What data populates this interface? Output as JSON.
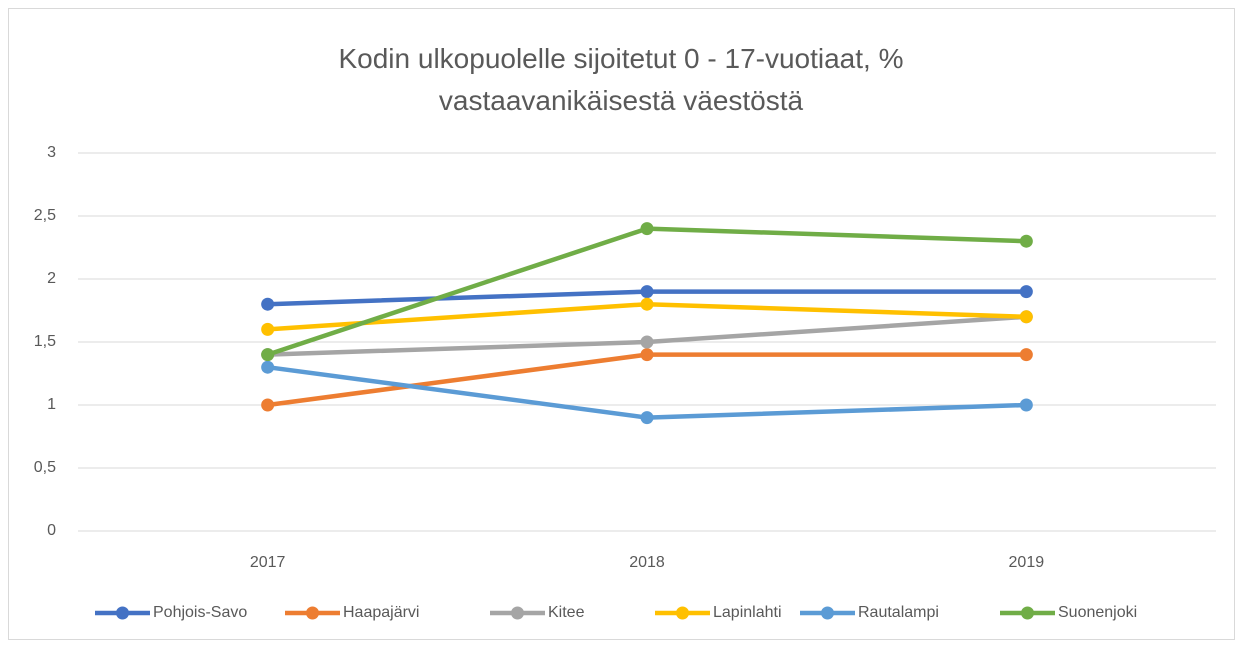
{
  "chart_data": {
    "type": "line",
    "title": "Kodin ulkopuolelle sijoitetut 0 - 17-vuotiaat, % vastaavanikäisestä väestöstä",
    "categories": [
      "2017",
      "2018",
      "2019"
    ],
    "series": [
      {
        "name": "Pohjois-Savo",
        "color": "#4472c4",
        "values": [
          1.8,
          1.9,
          1.9
        ]
      },
      {
        "name": "Haapajärvi",
        "color": "#ed7d31",
        "values": [
          1.0,
          1.4,
          1.4
        ]
      },
      {
        "name": "Kitee",
        "color": "#a5a5a5",
        "values": [
          1.4,
          1.5,
          1.7
        ]
      },
      {
        "name": "Lapinlahti",
        "color": "#ffc000",
        "values": [
          1.6,
          1.8,
          1.7
        ]
      },
      {
        "name": "Rautalampi",
        "color": "#5b9bd5",
        "values": [
          1.3,
          0.9,
          1.0
        ]
      },
      {
        "name": "Suonenjoki",
        "color": "#70ad47",
        "values": [
          1.4,
          2.4,
          2.3
        ]
      }
    ],
    "ylim": [
      0,
      3
    ],
    "yticks": [
      0,
      {
        "value": 0.5,
        "label": "0,5"
      },
      1,
      {
        "value": 1.5,
        "label": "1,5"
      },
      2,
      {
        "value": 2.5,
        "label": "2,5"
      },
      3
    ],
    "grid": true,
    "legend": "bottom"
  }
}
